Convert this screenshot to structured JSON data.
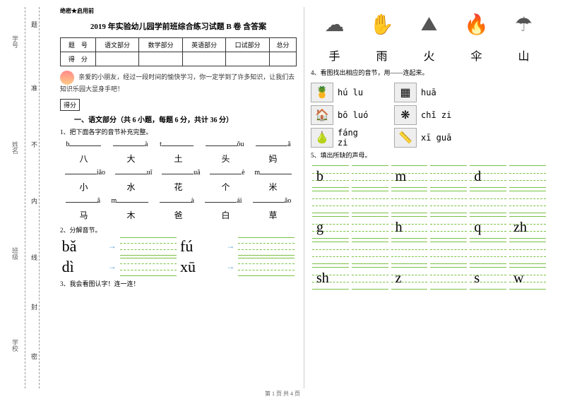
{
  "binding": {
    "labels": [
      "学号",
      "姓名",
      "班级",
      "学校"
    ],
    "chars": [
      "题",
      "准",
      "不",
      "内",
      "线",
      "封",
      "密"
    ]
  },
  "header": "绝密★启用前",
  "title": "2019 年实验幼儿园学前班综合练习试题 B 卷 含答案",
  "score_table": {
    "row1": [
      "题　号",
      "语文部分",
      "数学部分",
      "英语部分",
      "口试部分",
      "总分"
    ],
    "row2": [
      "得　分",
      "",
      "",
      "",
      "",
      ""
    ]
  },
  "intro": "亲爱的小朋友，经过一段时间的愉快学习，你一定学到了许多知识，让我们去知识乐园大显身手吧！",
  "score_box": "得分",
  "section1_title": "一、语文部分（共 6 小题，每题 6 分，共计 36 分）",
  "q1": "1、把下面各字的音节补充完整。",
  "q1_rows": [
    {
      "pinyin": [
        "b___",
        "___à",
        "t___",
        "___ǒu",
        "___ā"
      ],
      "chars": [
        "八",
        "大",
        "土",
        "头",
        "妈"
      ]
    },
    {
      "pinyin": [
        "___iǎo",
        "___uǐ",
        "___uā",
        "___è",
        "m___"
      ],
      "chars": [
        "小",
        "水",
        "花",
        "个",
        "米"
      ]
    },
    {
      "pinyin": [
        "___ǎ",
        "m___",
        "___à",
        "___ái",
        "___ǎo"
      ],
      "chars": [
        "马",
        "木",
        "爸",
        "白",
        "草"
      ]
    }
  ],
  "q2": "2、分解音节。",
  "q2_items": [
    [
      "bǎ",
      "fú"
    ],
    [
      "dì",
      "xū"
    ]
  ],
  "q3": "3、我会看图认字！连一连！",
  "right_icons": [
    "☁",
    "✋",
    "⛰",
    "🔥",
    "☂"
  ],
  "right_chars": [
    "手",
    "雨",
    "火",
    "伞",
    "山"
  ],
  "q4": "4、看图找出相应的音节，用——连起来。",
  "q4_rows": [
    {
      "img1": "🍍",
      "p1": "hú lu",
      "img2": "▦",
      "p2": "huā"
    },
    {
      "img1": "🏠",
      "p1": "bō luó",
      "img2": "❋",
      "p2": "chǐ zi"
    },
    {
      "img1": "🍐",
      "p1": "fáng zi",
      "img2": "📏",
      "p2": "xī guā"
    }
  ],
  "q5": "5、填出所缺的声母。",
  "q5_grid": [
    [
      "b",
      "",
      "m",
      "",
      "d",
      ""
    ],
    [
      "",
      "",
      "",
      "",
      "",
      ""
    ],
    [
      "g",
      "",
      "h",
      "",
      "q",
      "zh"
    ],
    [
      "",
      "",
      "",
      "",
      "",
      ""
    ],
    [
      "sh",
      "",
      "z",
      "",
      "s",
      "w"
    ]
  ],
  "footer": "第 1 页 共 4 页"
}
